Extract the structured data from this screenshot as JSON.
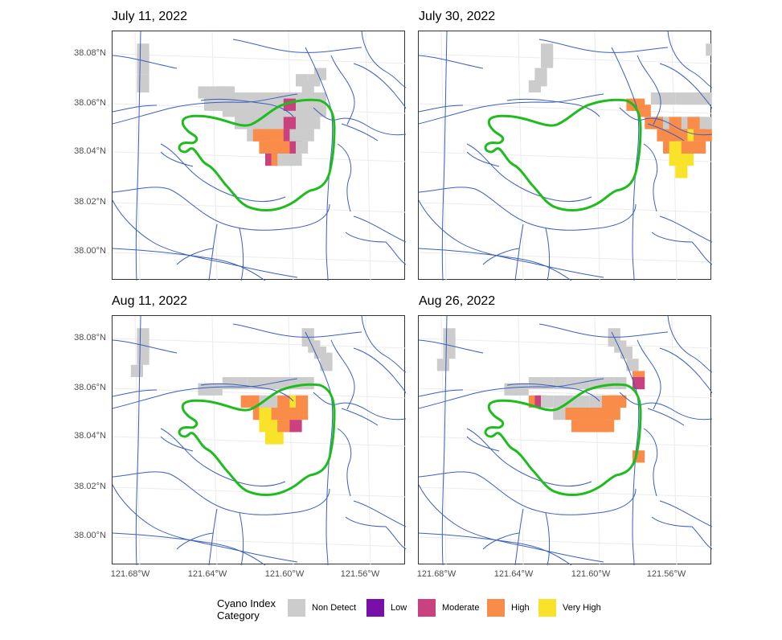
{
  "panels": [
    {
      "title": "July 11, 2022",
      "cells": [
        [
          8,
          4,
          "n"
        ],
        [
          8,
          6,
          "n"
        ],
        [
          8,
          8,
          "n"
        ],
        [
          8,
          10,
          "n"
        ],
        [
          8,
          14,
          "n"
        ],
        [
          8,
          16,
          "n"
        ],
        [
          60,
          14,
          "n"
        ],
        [
          62,
          16,
          "n"
        ],
        [
          64,
          14,
          "n"
        ],
        [
          66,
          12,
          "n"
        ],
        [
          28,
          18,
          "n"
        ],
        [
          30,
          20,
          "n"
        ],
        [
          32,
          18,
          "n"
        ],
        [
          34,
          18,
          "n"
        ],
        [
          36,
          18,
          "n"
        ],
        [
          30,
          22,
          "n"
        ],
        [
          32,
          22,
          "n"
        ],
        [
          34,
          22,
          "n"
        ],
        [
          36,
          22,
          "n"
        ],
        [
          38,
          20,
          "n"
        ],
        [
          40,
          20,
          "n"
        ],
        [
          42,
          20,
          "n"
        ],
        [
          44,
          20,
          "n"
        ],
        [
          46,
          20,
          "n"
        ],
        [
          48,
          20,
          "n"
        ],
        [
          50,
          20,
          "n"
        ],
        [
          52,
          20,
          "n"
        ],
        [
          54,
          20,
          "n"
        ],
        [
          56,
          20,
          "n"
        ],
        [
          58,
          20,
          "n"
        ],
        [
          60,
          20,
          "n"
        ],
        [
          62,
          20,
          "n"
        ],
        [
          64,
          20,
          "n"
        ],
        [
          66,
          20,
          "n"
        ],
        [
          36,
          24,
          "n"
        ],
        [
          38,
          24,
          "n"
        ],
        [
          40,
          24,
          "n"
        ],
        [
          42,
          24,
          "n"
        ],
        [
          44,
          24,
          "n"
        ],
        [
          46,
          24,
          "n"
        ],
        [
          48,
          24,
          "n"
        ],
        [
          50,
          24,
          "n"
        ],
        [
          52,
          24,
          "n"
        ],
        [
          54,
          24,
          "n"
        ],
        [
          56,
          24,
          "n"
        ],
        [
          58,
          24,
          "n"
        ],
        [
          60,
          24,
          "n"
        ],
        [
          62,
          24,
          "n"
        ],
        [
          64,
          24,
          "n"
        ],
        [
          66,
          24,
          "n"
        ],
        [
          40,
          28,
          "n"
        ],
        [
          42,
          28,
          "n"
        ],
        [
          44,
          28,
          "n"
        ],
        [
          46,
          28,
          "n"
        ],
        [
          48,
          28,
          "n"
        ],
        [
          50,
          28,
          "n"
        ],
        [
          52,
          28,
          "n"
        ],
        [
          54,
          28,
          "n"
        ],
        [
          56,
          28,
          "n"
        ],
        [
          58,
          28,
          "n"
        ],
        [
          60,
          28,
          "n"
        ],
        [
          62,
          28,
          "n"
        ],
        [
          64,
          28,
          "n"
        ],
        [
          44,
          32,
          "n"
        ],
        [
          46,
          32,
          "h"
        ],
        [
          48,
          32,
          "h"
        ],
        [
          50,
          32,
          "h"
        ],
        [
          52,
          32,
          "h"
        ],
        [
          54,
          32,
          "h"
        ],
        [
          56,
          32,
          "m"
        ],
        [
          58,
          32,
          "n"
        ],
        [
          60,
          32,
          "n"
        ],
        [
          62,
          32,
          "n"
        ],
        [
          48,
          36,
          "h"
        ],
        [
          50,
          36,
          "h"
        ],
        [
          52,
          36,
          "h"
        ],
        [
          54,
          36,
          "h"
        ],
        [
          56,
          36,
          "h"
        ],
        [
          58,
          36,
          "m"
        ],
        [
          60,
          36,
          "n"
        ],
        [
          50,
          40,
          "m"
        ],
        [
          52,
          40,
          "h"
        ],
        [
          54,
          40,
          "n"
        ],
        [
          56,
          40,
          "n"
        ],
        [
          58,
          40,
          "n"
        ],
        [
          56,
          22,
          "m"
        ],
        [
          56,
          28,
          "m"
        ]
      ]
    },
    {
      "title": "July 30, 2022",
      "cells": [
        [
          40,
          4,
          "n"
        ],
        [
          40,
          6,
          "n"
        ],
        [
          40,
          8,
          "n"
        ],
        [
          38,
          12,
          "n"
        ],
        [
          38,
          14,
          "n"
        ],
        [
          36,
          16,
          "n"
        ],
        [
          94,
          4,
          "n"
        ],
        [
          96,
          6,
          "n"
        ],
        [
          96,
          8,
          "n"
        ],
        [
          98,
          10,
          "n"
        ],
        [
          100,
          12,
          "n"
        ],
        [
          102,
          14,
          "n"
        ],
        [
          68,
          22,
          "h"
        ],
        [
          70,
          22,
          "h"
        ],
        [
          72,
          24,
          "h"
        ],
        [
          76,
          20,
          "n"
        ],
        [
          80,
          20,
          "n"
        ],
        [
          84,
          20,
          "n"
        ],
        [
          86,
          20,
          "n"
        ],
        [
          88,
          20,
          "n"
        ],
        [
          90,
          20,
          "n"
        ],
        [
          92,
          20,
          "n"
        ],
        [
          74,
          28,
          "h"
        ],
        [
          76,
          28,
          "h"
        ],
        [
          78,
          28,
          "h"
        ],
        [
          80,
          28,
          "n"
        ],
        [
          82,
          28,
          "h"
        ],
        [
          84,
          28,
          "h"
        ],
        [
          86,
          28,
          "n"
        ],
        [
          88,
          28,
          "h"
        ],
        [
          90,
          28,
          "h"
        ],
        [
          92,
          28,
          "n"
        ],
        [
          78,
          32,
          "h"
        ],
        [
          80,
          32,
          "h"
        ],
        [
          82,
          32,
          "h"
        ],
        [
          84,
          32,
          "h"
        ],
        [
          86,
          32,
          "h"
        ],
        [
          88,
          32,
          "y"
        ],
        [
          90,
          32,
          "h"
        ],
        [
          92,
          32,
          "h"
        ],
        [
          80,
          36,
          "h"
        ],
        [
          82,
          36,
          "y"
        ],
        [
          84,
          36,
          "y"
        ],
        [
          86,
          36,
          "h"
        ],
        [
          88,
          36,
          "h"
        ],
        [
          90,
          36,
          "h"
        ],
        [
          82,
          40,
          "y"
        ],
        [
          84,
          40,
          "y"
        ],
        [
          86,
          40,
          "y"
        ],
        [
          84,
          44,
          "y"
        ]
      ]
    },
    {
      "title": "Aug 11, 2022",
      "cells": [
        [
          8,
          4,
          "n"
        ],
        [
          8,
          6,
          "n"
        ],
        [
          8,
          8,
          "n"
        ],
        [
          8,
          10,
          "n"
        ],
        [
          8,
          12,
          "n"
        ],
        [
          6,
          16,
          "n"
        ],
        [
          62,
          4,
          "n"
        ],
        [
          62,
          6,
          "n"
        ],
        [
          64,
          8,
          "n"
        ],
        [
          66,
          10,
          "n"
        ],
        [
          68,
          12,
          "n"
        ],
        [
          68,
          14,
          "n"
        ],
        [
          28,
          22,
          "n"
        ],
        [
          30,
          22,
          "n"
        ],
        [
          32,
          22,
          "n"
        ],
        [
          36,
          20,
          "n"
        ],
        [
          40,
          20,
          "n"
        ],
        [
          44,
          20,
          "n"
        ],
        [
          46,
          20,
          "n"
        ],
        [
          48,
          20,
          "n"
        ],
        [
          50,
          20,
          "n"
        ],
        [
          52,
          20,
          "n"
        ],
        [
          54,
          20,
          "n"
        ],
        [
          56,
          20,
          "n"
        ],
        [
          58,
          20,
          "n"
        ],
        [
          60,
          20,
          "n"
        ],
        [
          62,
          20,
          "n"
        ],
        [
          42,
          26,
          "h"
        ],
        [
          44,
          26,
          "h"
        ],
        [
          46,
          26,
          "h"
        ],
        [
          48,
          26,
          "n"
        ],
        [
          50,
          26,
          "n"
        ],
        [
          52,
          26,
          "n"
        ],
        [
          54,
          26,
          "h"
        ],
        [
          56,
          26,
          "h"
        ],
        [
          58,
          26,
          "y"
        ],
        [
          60,
          26,
          "h"
        ],
        [
          46,
          30,
          "h"
        ],
        [
          48,
          30,
          "y"
        ],
        [
          50,
          30,
          "y"
        ],
        [
          52,
          30,
          "h"
        ],
        [
          54,
          30,
          "h"
        ],
        [
          56,
          30,
          "h"
        ],
        [
          58,
          30,
          "h"
        ],
        [
          60,
          30,
          "h"
        ],
        [
          48,
          34,
          "y"
        ],
        [
          50,
          34,
          "y"
        ],
        [
          52,
          34,
          "y"
        ],
        [
          54,
          34,
          "h"
        ],
        [
          56,
          34,
          "h"
        ],
        [
          58,
          34,
          "m"
        ],
        [
          50,
          38,
          "y"
        ],
        [
          52,
          38,
          "y"
        ]
      ]
    },
    {
      "title": "Aug 26, 2022",
      "cells": [
        [
          8,
          4,
          "n"
        ],
        [
          8,
          6,
          "n"
        ],
        [
          8,
          8,
          "n"
        ],
        [
          8,
          10,
          "n"
        ],
        [
          6,
          14,
          "n"
        ],
        [
          62,
          4,
          "n"
        ],
        [
          62,
          6,
          "n"
        ],
        [
          64,
          8,
          "n"
        ],
        [
          66,
          10,
          "n"
        ],
        [
          68,
          14,
          "n"
        ],
        [
          70,
          18,
          "h"
        ],
        [
          70,
          20,
          "m"
        ],
        [
          28,
          22,
          "n"
        ],
        [
          30,
          22,
          "n"
        ],
        [
          32,
          22,
          "n"
        ],
        [
          36,
          20,
          "n"
        ],
        [
          40,
          20,
          "n"
        ],
        [
          44,
          20,
          "n"
        ],
        [
          48,
          20,
          "n"
        ],
        [
          52,
          20,
          "n"
        ],
        [
          56,
          20,
          "n"
        ],
        [
          60,
          20,
          "n"
        ],
        [
          64,
          20,
          "n"
        ],
        [
          36,
          26,
          "h"
        ],
        [
          38,
          26,
          "m"
        ],
        [
          40,
          26,
          "n"
        ],
        [
          44,
          26,
          "n"
        ],
        [
          48,
          26,
          "n"
        ],
        [
          52,
          26,
          "n"
        ],
        [
          56,
          26,
          "n"
        ],
        [
          60,
          26,
          "h"
        ],
        [
          62,
          26,
          "h"
        ],
        [
          64,
          26,
          "h"
        ],
        [
          44,
          30,
          "n"
        ],
        [
          48,
          30,
          "h"
        ],
        [
          50,
          30,
          "h"
        ],
        [
          52,
          30,
          "h"
        ],
        [
          54,
          30,
          "h"
        ],
        [
          56,
          30,
          "h"
        ],
        [
          58,
          30,
          "h"
        ],
        [
          60,
          30,
          "h"
        ],
        [
          62,
          30,
          "h"
        ],
        [
          50,
          34,
          "h"
        ],
        [
          52,
          34,
          "h"
        ],
        [
          54,
          34,
          "h"
        ],
        [
          56,
          34,
          "h"
        ],
        [
          58,
          34,
          "h"
        ],
        [
          60,
          34,
          "h"
        ],
        [
          70,
          44,
          "h"
        ]
      ]
    }
  ],
  "y_ticks": [
    "38.08°N",
    "38.06°N",
    "38.04°N",
    "38.02°N",
    "38.00°N"
  ],
  "x_ticks": [
    "121.68°W",
    "121.64°W",
    "121.60°W",
    "121.56°W"
  ],
  "legend": {
    "title": "Cyano Index\nCategory",
    "items": [
      {
        "code": "n",
        "label": "Non Detect",
        "color": "#cccccc"
      },
      {
        "code": "l",
        "label": "Low",
        "color": "#7a0ea8"
      },
      {
        "code": "m",
        "label": "Moderate",
        "color": "#c9427f"
      },
      {
        "code": "h",
        "label": "High",
        "color": "#f98c48"
      },
      {
        "code": "y",
        "label": "Very High",
        "color": "#f9e22a"
      }
    ]
  },
  "colors": {
    "waterway": "#3a5fbf",
    "boundary": "#1ebc1e",
    "grid": "#ebebeb",
    "frame": "#333333"
  }
}
